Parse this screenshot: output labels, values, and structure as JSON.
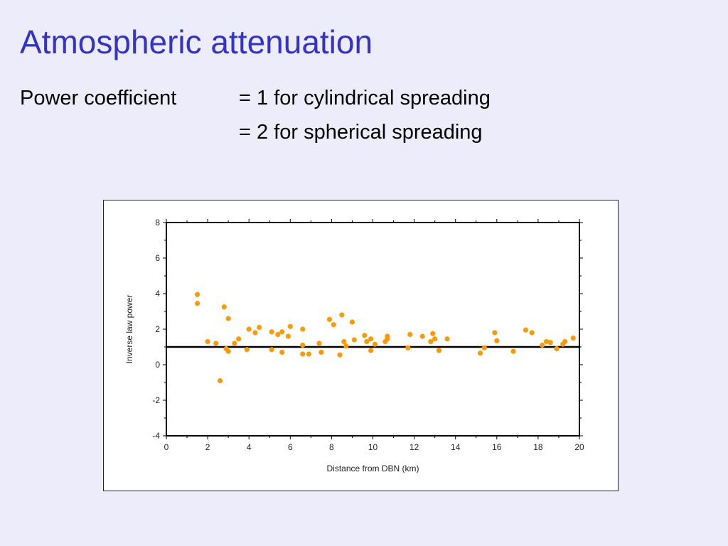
{
  "slide": {
    "title": "Atmospheric attenuation",
    "label": "Power coefficient",
    "line1": "= 1 for cylindrical spreading",
    "line2": "= 2 for spherical spreading"
  },
  "colors": {
    "title": "#3333cc",
    "background": "#ececfa",
    "points": "#ff9900",
    "reference_line": "#000000"
  },
  "chart_data": {
    "type": "scatter",
    "xlabel": "Distance from DBN (km)",
    "ylabel": "Inverse law power",
    "xlim": [
      0,
      20
    ],
    "ylim": [
      -4,
      8
    ],
    "x_ticks": [
      "0",
      "2",
      "4",
      "6",
      "8",
      "10",
      "12",
      "14",
      "16",
      "18",
      "20"
    ],
    "y_ticks": [
      "-4",
      "-2",
      "0",
      "2",
      "4",
      "6",
      "8"
    ],
    "grid": false,
    "reference_line_y": 1,
    "points": [
      [
        1.5,
        3.95
      ],
      [
        1.5,
        3.45
      ],
      [
        2.0,
        1.3
      ],
      [
        2.4,
        1.2
      ],
      [
        2.6,
        -0.9
      ],
      [
        2.8,
        3.25
      ],
      [
        2.9,
        0.9
      ],
      [
        3.0,
        2.6
      ],
      [
        3.0,
        0.75
      ],
      [
        3.3,
        1.2
      ],
      [
        3.5,
        1.45
      ],
      [
        3.9,
        0.85
      ],
      [
        4.0,
        2.0
      ],
      [
        4.3,
        1.8
      ],
      [
        4.5,
        2.1
      ],
      [
        5.1,
        1.85
      ],
      [
        5.1,
        0.85
      ],
      [
        5.4,
        1.7
      ],
      [
        5.6,
        1.85
      ],
      [
        5.6,
        0.7
      ],
      [
        5.9,
        1.6
      ],
      [
        6.0,
        2.15
      ],
      [
        6.6,
        2.0
      ],
      [
        6.6,
        1.1
      ],
      [
        6.6,
        0.6
      ],
      [
        6.9,
        0.6
      ],
      [
        7.4,
        1.2
      ],
      [
        7.5,
        0.7
      ],
      [
        7.9,
        2.55
      ],
      [
        8.1,
        2.25
      ],
      [
        8.4,
        0.55
      ],
      [
        8.5,
        2.8
      ],
      [
        8.6,
        1.3
      ],
      [
        8.7,
        1.05
      ],
      [
        9.0,
        2.4
      ],
      [
        9.1,
        1.4
      ],
      [
        9.6,
        1.65
      ],
      [
        9.7,
        1.3
      ],
      [
        9.9,
        1.45
      ],
      [
        9.9,
        0.8
      ],
      [
        10.1,
        1.15
      ],
      [
        10.6,
        1.3
      ],
      [
        10.7,
        1.6
      ],
      [
        10.7,
        1.45
      ],
      [
        11.7,
        0.95
      ],
      [
        11.8,
        1.7
      ],
      [
        12.4,
        1.6
      ],
      [
        12.8,
        1.3
      ],
      [
        12.9,
        1.75
      ],
      [
        13.0,
        1.45
      ],
      [
        13.2,
        0.8
      ],
      [
        13.6,
        1.45
      ],
      [
        15.2,
        0.65
      ],
      [
        15.4,
        0.95
      ],
      [
        15.9,
        1.8
      ],
      [
        16.0,
        1.35
      ],
      [
        16.8,
        0.75
      ],
      [
        17.4,
        1.95
      ],
      [
        17.7,
        1.8
      ],
      [
        18.2,
        1.1
      ],
      [
        18.4,
        1.3
      ],
      [
        18.6,
        1.25
      ],
      [
        18.9,
        0.9
      ],
      [
        19.2,
        1.15
      ],
      [
        19.3,
        1.3
      ],
      [
        19.7,
        1.5
      ]
    ]
  }
}
